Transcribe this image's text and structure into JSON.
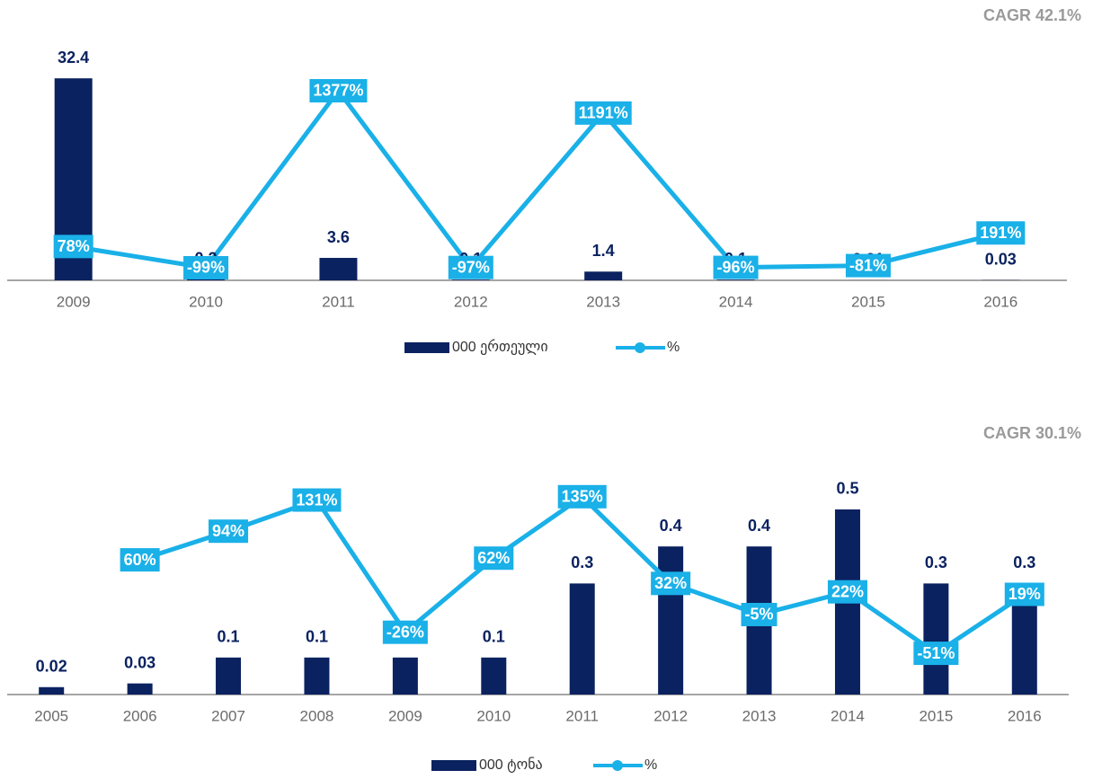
{
  "chart_data": [
    {
      "type": "bar",
      "annotation": "CAGR 42.1%",
      "categories": [
        "2009",
        "2010",
        "2011",
        "2012",
        "2013",
        "2014",
        "2015",
        "2016"
      ],
      "ylim": [
        0,
        39.2
      ],
      "y2lim": [
        -204,
        1834
      ],
      "series": [
        {
          "name": "000 ერთეული",
          "color": "#0b2260",
          "type": "bar",
          "values": [
            32.4,
            0.2,
            3.6,
            0.1,
            1.4,
            0.1,
            0.01,
            0.03
          ]
        },
        {
          "name": "%",
          "color": "#1ab0e8",
          "type": "line",
          "axis": "y2",
          "values": [
            78,
            -99,
            1377,
            -97,
            1191,
            -96,
            -81,
            191
          ],
          "value_labels": [
            "78%",
            "-99%",
            "1377%",
            "-97%",
            "1191%",
            "-96%",
            "-81%",
            "191%"
          ]
        }
      ]
    },
    {
      "type": "bar",
      "annotation": "CAGR 30.1%",
      "categories": [
        "2005",
        "2006",
        "2007",
        "2008",
        "2009",
        "2010",
        "2011",
        "2012",
        "2013",
        "2014",
        "2015",
        "2016"
      ],
      "ylim": [
        0,
        0.614
      ],
      "y2lim": [
        -100,
        170
      ],
      "series": [
        {
          "name": "000 ტონა",
          "color": "#0b2260",
          "type": "bar",
          "values": [
            0.02,
            0.03,
            0.1,
            0.1,
            0.1,
            0.1,
            0.3,
            0.4,
            0.4,
            0.5,
            0.3,
            0.3
          ]
        },
        {
          "name": "%",
          "color": "#1ab0e8",
          "type": "line",
          "axis": "y2",
          "values": [
            null,
            60,
            94,
            131,
            -26,
            62,
            135,
            32,
            -5,
            22,
            -51,
            19
          ],
          "value_labels": [
            null,
            "60%",
            "94%",
            "131%",
            "-26%",
            "62%",
            "135%",
            "32%",
            "-5%",
            "22%",
            "-51%",
            "19%"
          ]
        }
      ]
    }
  ]
}
